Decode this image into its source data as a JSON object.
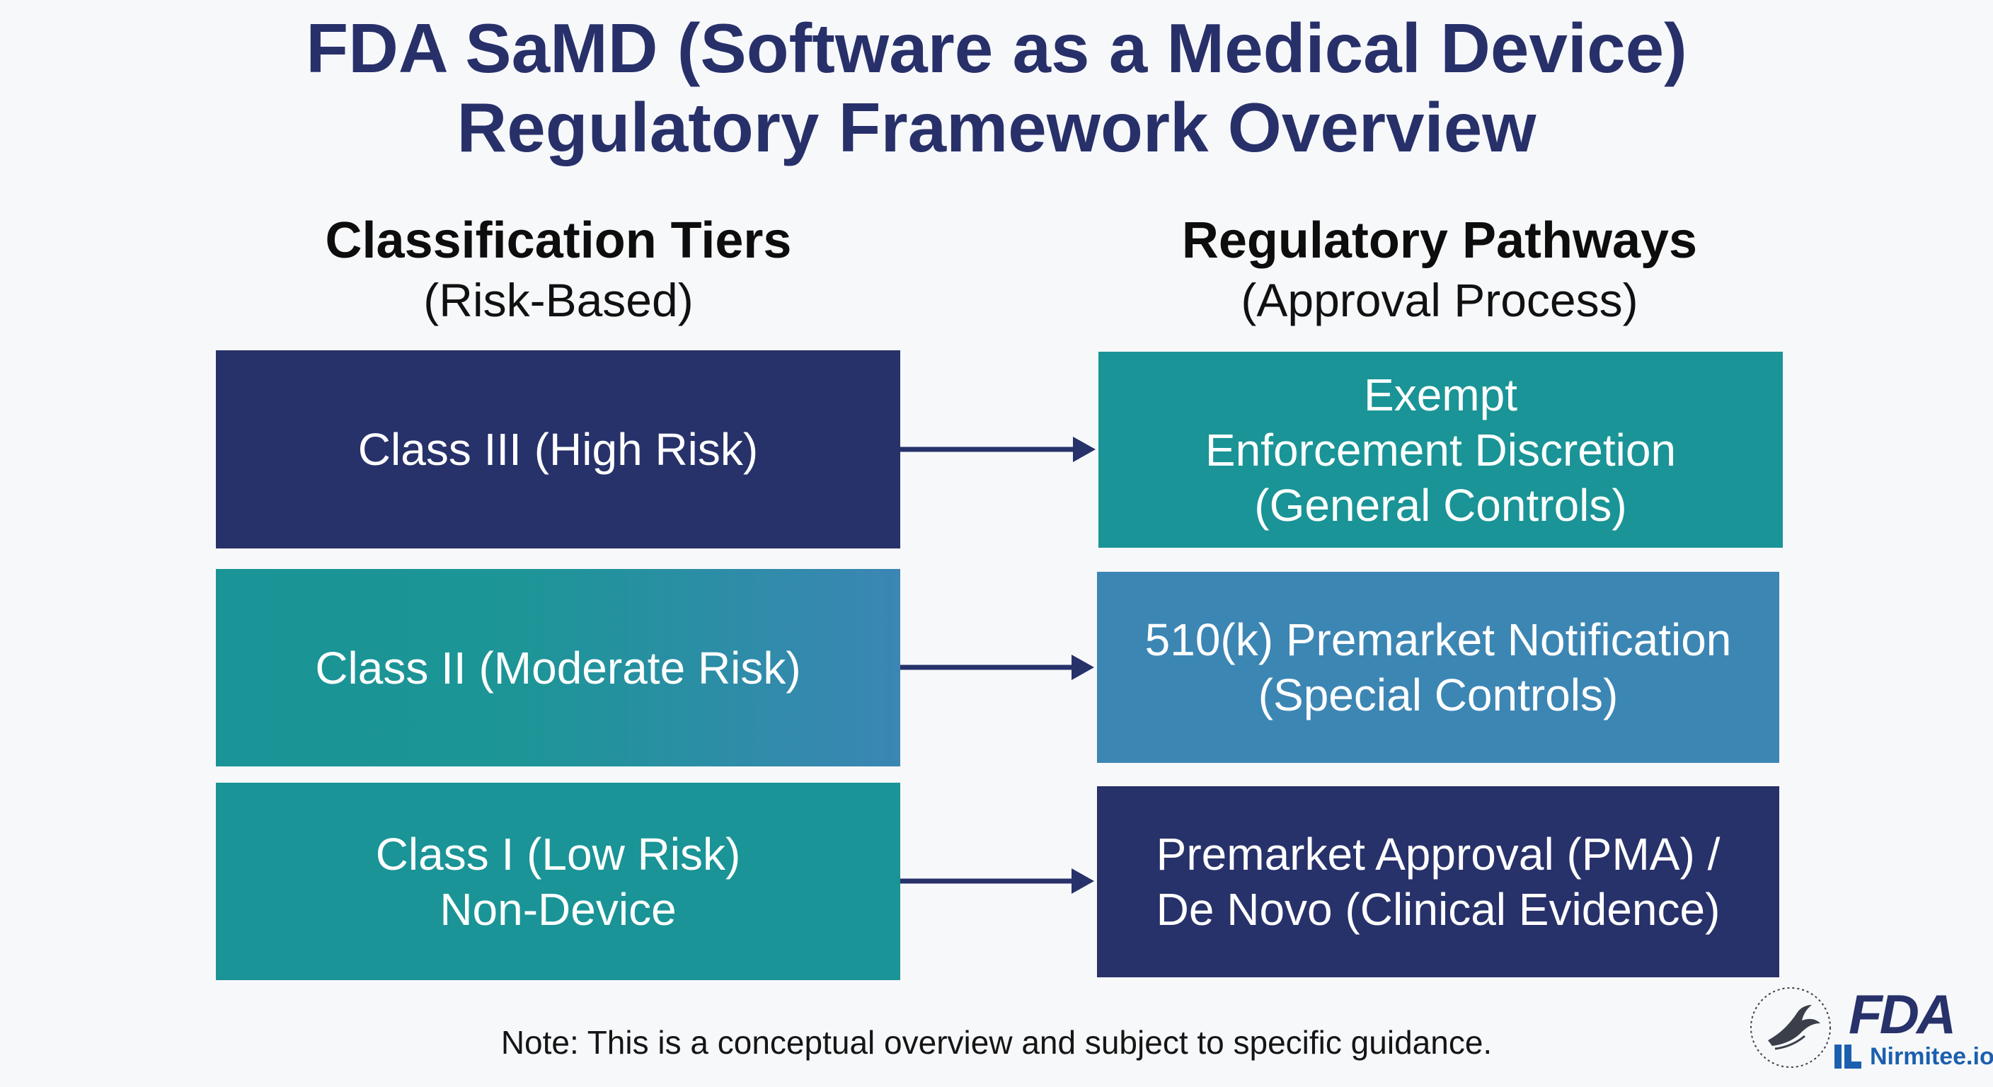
{
  "title": {
    "line1": "FDA SaMD (Software as a Medical Device)",
    "line2": "Regulatory Framework Overview"
  },
  "left_column": {
    "heading": "Classification Tiers",
    "subheading": "(Risk-Based)",
    "tiers": [
      {
        "lines": [
          "Class III (High Risk)"
        ],
        "color": "#27316a"
      },
      {
        "lines": [
          "Class II (Moderate Risk)"
        ],
        "color": "#1a9496"
      },
      {
        "lines": [
          "Class I (Low Risk)",
          "Non-Device"
        ],
        "color": "#1a9496"
      }
    ]
  },
  "right_column": {
    "heading": "Regulatory Pathways",
    "subheading": "(Approval Process)",
    "pathways": [
      {
        "lines": [
          "Exempt",
          "Enforcement Discretion",
          "(General Controls)"
        ],
        "color": "#1a9496"
      },
      {
        "lines": [
          "510(k) Premarket Notification",
          "(Special Controls)"
        ],
        "color": "#3c86b4"
      },
      {
        "lines": [
          "Premarket Approval (PMA) /",
          "De Novo (Clinical Evidence)"
        ],
        "color": "#27316a"
      }
    ]
  },
  "arrow_color": "#27316a",
  "note": "Note: This is a conceptual overview and subject to specific guidance.",
  "logos": {
    "hhs_seal_icon": "hhs-eagle-seal-icon",
    "fda": "FDA",
    "nirmitee": "Nirmitee.io"
  }
}
